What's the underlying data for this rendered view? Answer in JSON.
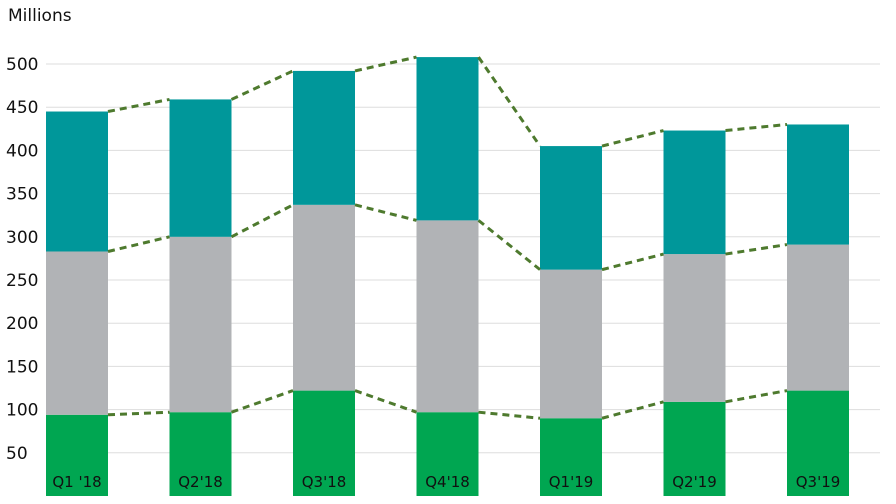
{
  "chart_data": {
    "type": "bar",
    "stacked": true,
    "ylabel": "Millions",
    "ylim": [
      0,
      530
    ],
    "yticks": [
      50,
      100,
      150,
      200,
      250,
      300,
      350,
      400,
      450,
      500
    ],
    "grid": true,
    "connector_lines": "dashed",
    "categories": [
      "Q1 '18",
      "Q2'18",
      "Q3'18",
      "Q4'18",
      "Q1'19",
      "Q2'19",
      "Q3'19"
    ],
    "series": [
      {
        "color": "#00A651",
        "values": [
          94,
          97,
          122,
          97,
          90,
          109,
          122
        ]
      },
      {
        "color": "#B1B3B6",
        "values": [
          189,
          203,
          215,
          222,
          172,
          171,
          169
        ]
      },
      {
        "color": "#00979A",
        "values": [
          162,
          159,
          155,
          189,
          143,
          143,
          139
        ]
      }
    ],
    "line_color": "#4E7A2E"
  }
}
